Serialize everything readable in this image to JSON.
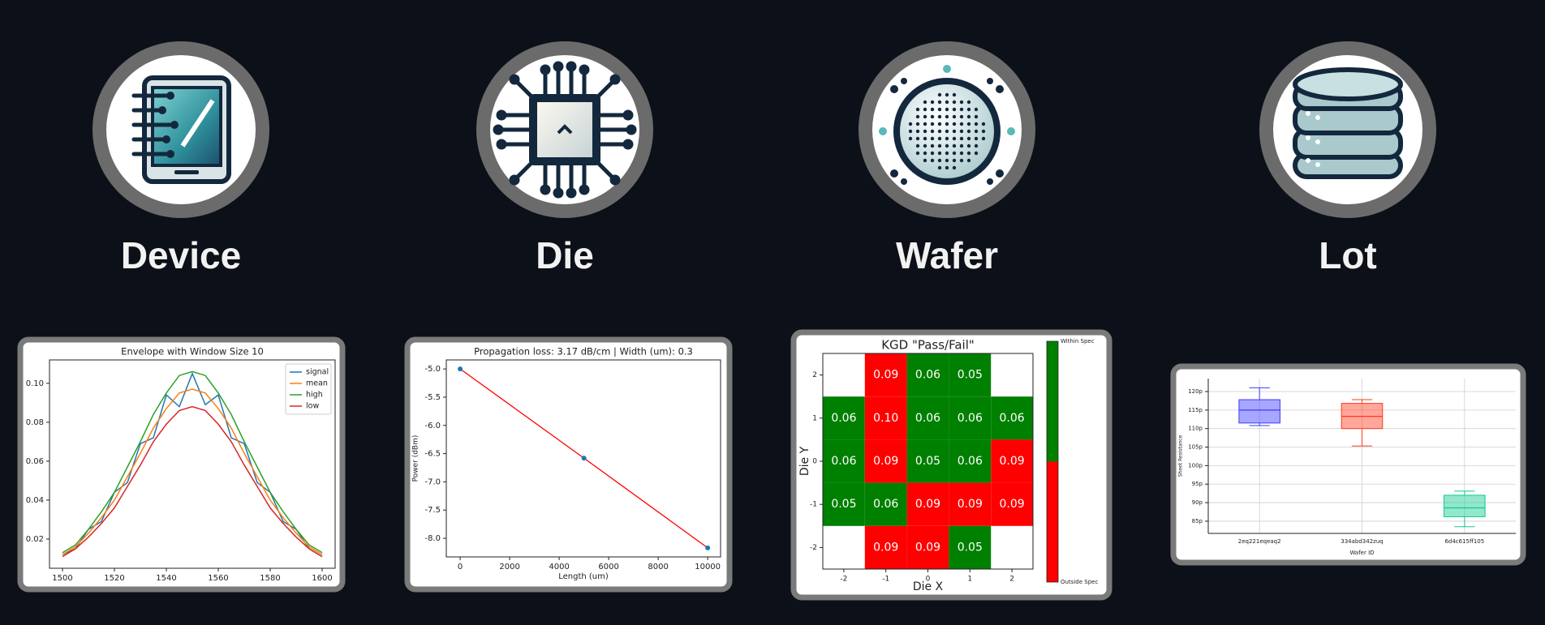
{
  "headings": [
    "Device",
    "Die",
    "Wafer",
    "Lot"
  ],
  "chart_data": [
    {
      "type": "line",
      "title": "Envelope with Window Size 10",
      "x": [
        1500,
        1505,
        1510,
        1515,
        1520,
        1525,
        1530,
        1535,
        1540,
        1545,
        1550,
        1555,
        1560,
        1565,
        1570,
        1575,
        1580,
        1585,
        1590,
        1595,
        1600
      ],
      "series": [
        {
          "name": "signal",
          "color": "#1f77b4",
          "values": [
            0.012,
            0.015,
            0.025,
            0.029,
            0.044,
            0.049,
            0.069,
            0.072,
            0.094,
            0.088,
            0.105,
            0.089,
            0.094,
            0.072,
            0.069,
            0.049,
            0.044,
            0.029,
            0.025,
            0.015,
            0.011
          ]
        },
        {
          "name": "mean",
          "color": "#ff7f0e",
          "values": [
            0.012,
            0.016,
            0.023,
            0.031,
            0.04,
            0.052,
            0.064,
            0.077,
            0.087,
            0.095,
            0.097,
            0.095,
            0.087,
            0.077,
            0.064,
            0.052,
            0.04,
            0.031,
            0.023,
            0.016,
            0.012
          ]
        },
        {
          "name": "high",
          "color": "#2ca02c",
          "values": [
            0.013,
            0.017,
            0.025,
            0.034,
            0.044,
            0.057,
            0.07,
            0.084,
            0.095,
            0.104,
            0.106,
            0.104,
            0.095,
            0.084,
            0.07,
            0.057,
            0.044,
            0.034,
            0.025,
            0.017,
            0.013
          ]
        },
        {
          "name": "low",
          "color": "#d62728",
          "values": [
            0.011,
            0.015,
            0.021,
            0.028,
            0.036,
            0.047,
            0.058,
            0.07,
            0.079,
            0.086,
            0.088,
            0.086,
            0.079,
            0.07,
            0.058,
            0.047,
            0.036,
            0.028,
            0.021,
            0.015,
            0.011
          ]
        }
      ],
      "xlim": [
        1495,
        1605
      ],
      "xticks": [
        1500,
        1520,
        1540,
        1560,
        1580,
        1600
      ],
      "ylim": [
        0.005,
        0.112
      ],
      "yticks": [
        0.02,
        0.04,
        0.06,
        0.08,
        {
          "value": 0.1,
          "label": "0.10"
        }
      ],
      "legend": "upper right"
    },
    {
      "type": "line",
      "title": "Propagation loss: 3.17 dB/cm | Width (um): 0.3",
      "x_label": "Length (um)",
      "y_label": "Power (dBm)",
      "x": [
        0,
        5000,
        10000
      ],
      "values": [
        -5.0,
        -6.58,
        -8.17
      ],
      "color": "#ff0000",
      "marker_color": "#1f77b4",
      "xlim": [
        -560,
        10520
      ],
      "xticks": [
        0,
        2000,
        4000,
        6000,
        8000,
        10000
      ],
      "ylim": [
        -8.33,
        -4.84
      ],
      "yticks": [
        {
          "value": -8,
          "label": "-8.0"
        },
        -7.5,
        {
          "value": -7,
          "label": "-7.0"
        },
        -6.5,
        {
          "value": -6,
          "label": "-6.0"
        },
        -5.5,
        {
          "value": -5,
          "label": "-5.0"
        }
      ]
    },
    {
      "type": "heatmap",
      "title": "KGD \"Pass/Fail\"",
      "x_label": "Die X",
      "y_label": "Die Y",
      "xlim": [
        -2.5,
        2.5
      ],
      "xticks": [
        -2,
        -1,
        0,
        1,
        2
      ],
      "ylim": [
        -2.5,
        2.5
      ],
      "yticks": [
        -2,
        -1,
        0,
        1,
        2
      ],
      "values": [
        [
          null,
          0.09,
          0.06,
          0.05,
          null
        ],
        [
          0.06,
          0.1,
          0.06,
          0.06,
          0.06
        ],
        [
          0.06,
          0.09,
          0.05,
          0.06,
          0.09
        ],
        [
          0.05,
          0.06,
          0.09,
          0.09,
          0.09
        ],
        [
          null,
          0.09,
          0.09,
          0.05,
          null
        ]
      ],
      "value_labels": [
        [
          null,
          "0.09",
          "0.06",
          "0.05",
          null
        ],
        [
          "0.06",
          "0.10",
          "0.06",
          "0.06",
          "0.06"
        ],
        [
          "0.06",
          "0.09",
          "0.05",
          "0.06",
          "0.09"
        ],
        [
          "0.05",
          "0.06",
          "0.09",
          "0.09",
          "0.09"
        ],
        [
          null,
          "0.09",
          "0.09",
          "0.05",
          null
        ]
      ],
      "colors": [
        [
          null,
          "#ff0000",
          "#008000",
          "#008000",
          null
        ],
        [
          "#008000",
          "#ff0000",
          "#008000",
          "#008000",
          "#008000"
        ],
        [
          "#008000",
          "#ff0000",
          "#008000",
          "#008000",
          "#ff0000"
        ],
        [
          "#008000",
          "#008000",
          "#ff0000",
          "#ff0000",
          "#ff0000"
        ],
        [
          null,
          "#ff0000",
          "#ff0000",
          "#008000",
          null
        ]
      ],
      "colorbar": {
        "labels": [
          "Within Spec",
          "Outside Spec"
        ],
        "colors": [
          "#008000",
          "#ff0000"
        ]
      }
    },
    {
      "type": "box",
      "x_label": "Wafer ID",
      "y_label": "Sheet Resistance",
      "categories": [
        "2eq221eqeaq2",
        "334abd342zuq",
        "6d4c615ff105"
      ],
      "boxes": [
        {
          "whislo": 110.8,
          "q1": 111.5,
          "med": 115,
          "q3": 117.8,
          "whishi": 121,
          "color": "#3b3bff"
        },
        {
          "whislo": 105.3,
          "q1": 110,
          "med": 113.3,
          "q3": 116.8,
          "whishi": 117.8,
          "color": "#ff3b1f"
        },
        {
          "whislo": 83.5,
          "q1": 86.2,
          "med": 88.6,
          "q3": 92,
          "whishi": 93.1,
          "color": "#10c990"
        }
      ],
      "ylim": [
        81.7,
        123.5
      ],
      "yticks": [
        {
          "value": 85,
          "label": "85p"
        },
        {
          "value": 90,
          "label": "90p"
        },
        {
          "value": 95,
          "label": "95p"
        },
        {
          "value": 100,
          "label": "100p"
        },
        {
          "value": 105,
          "label": "105p"
        },
        {
          "value": 110,
          "label": "110p"
        },
        {
          "value": 115,
          "label": "115p"
        },
        {
          "value": 120,
          "label": "120p"
        }
      ],
      "grid": true
    }
  ]
}
